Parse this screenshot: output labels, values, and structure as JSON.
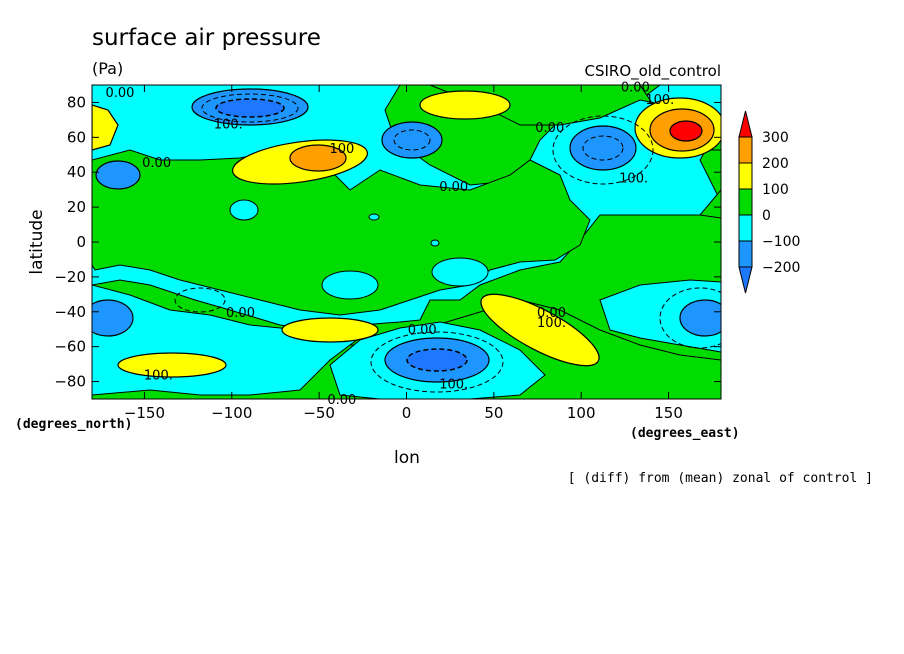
{
  "chart_data": {
    "type": "heatmap",
    "title": "surface air pressure",
    "units": "(Pa)",
    "dataset": "CSIRO_old_control",
    "xlabel": "lon",
    "ylabel": "latitude",
    "x_units": "(degrees_east)",
    "y_units": "(degrees_north)",
    "note": "[ (diff) from (mean) zonal of control ]",
    "xlim": [
      -180,
      180
    ],
    "ylim": [
      -90,
      90
    ],
    "x_ticks": [
      -150,
      -100,
      -50,
      0,
      50,
      100,
      150
    ],
    "y_ticks": [
      80,
      60,
      40,
      20,
      0,
      -20,
      -40,
      -60,
      -80
    ],
    "x_tick_labels": [
      "−150",
      "−100",
      "−50",
      "0",
      "50",
      "100",
      "150"
    ],
    "y_tick_labels": [
      "80",
      "60",
      "40",
      "20",
      "0",
      "−20",
      "−40",
      "−60",
      "−80"
    ],
    "colorbar": {
      "levels": [
        -200,
        -100,
        0,
        100,
        200,
        300
      ],
      "labels": [
        "300",
        "200",
        "100",
        "0",
        "−100",
        "−200"
      ],
      "colors": {
        "below_-200": "#1e78ff",
        "-200_-100": "#1e96ff",
        "-100_0": "#00ffff",
        "0_100": "#00dc00",
        "100_200": "#ffff00",
        "200_300": "#ffa000",
        "above_300": "#ff0000"
      }
    },
    "contour_labels": [
      {
        "lon": -164,
        "lat": 86,
        "text": "0.00"
      },
      {
        "lon": -102,
        "lat": 68,
        "text": "100."
      },
      {
        "lon": -143,
        "lat": 46,
        "text": "0.00"
      },
      {
        "lon": -37,
        "lat": 54,
        "text": "100"
      },
      {
        "lon": 27,
        "lat": 32,
        "text": "0.00"
      },
      {
        "lon": 82,
        "lat": 66,
        "text": "0.00"
      },
      {
        "lon": 131,
        "lat": 89,
        "text": "0.00"
      },
      {
        "lon": 145,
        "lat": 82,
        "text": "100."
      },
      {
        "lon": 130,
        "lat": 37,
        "text": "100."
      },
      {
        "lon": -95,
        "lat": -40,
        "text": "0.00"
      },
      {
        "lon": 9,
        "lat": -50,
        "text": "0.00"
      },
      {
        "lon": 83,
        "lat": -40,
        "text": "0.00"
      },
      {
        "lon": 83,
        "lat": -46,
        "text": "100."
      },
      {
        "lon": -142,
        "lat": -76,
        "text": "100."
      },
      {
        "lon": 27,
        "lat": -81,
        "text": "100."
      },
      {
        "lon": -37,
        "lat": -90,
        "text": "0.00"
      }
    ]
  }
}
